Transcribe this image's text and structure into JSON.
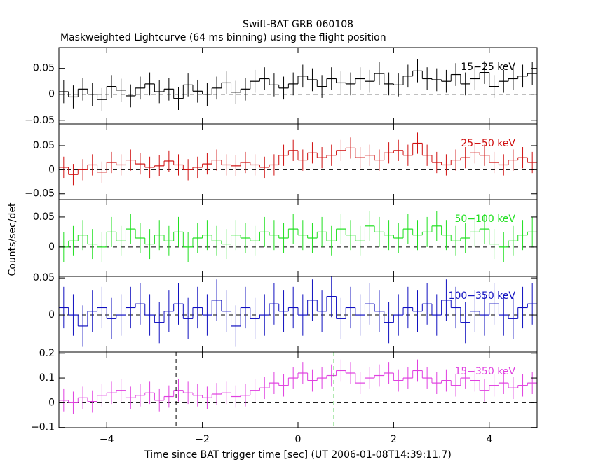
{
  "title": "Swift-BAT GRB 060108",
  "subtitle": "Maskweighted Lightcurve (64 ms binning) using the flight position",
  "ylabel": "Counts/sec/det",
  "xlabel": "Time since BAT trigger time [sec] (UT 2006-01-08T14:39:11.7)",
  "chart_data": [
    {
      "type": "line",
      "label": "15−25 keV",
      "color": "#000000",
      "x": [
        -4.9,
        -4.7,
        -4.5,
        -4.3,
        -4.1,
        -3.9,
        -3.7,
        -3.5,
        -3.3,
        -3.1,
        -2.9,
        -2.7,
        -2.5,
        -2.3,
        -2.1,
        -1.9,
        -1.7,
        -1.5,
        -1.3,
        -1.1,
        -0.9,
        -0.7,
        -0.5,
        -0.3,
        -0.1,
        0.1,
        0.3,
        0.5,
        0.7,
        0.9,
        1.1,
        1.3,
        1.5,
        1.7,
        1.9,
        2.1,
        2.3,
        2.5,
        2.7,
        2.9,
        3.1,
        3.3,
        3.5,
        3.7,
        3.9,
        4.1,
        4.3,
        4.5,
        4.7,
        4.9
      ],
      "values": [
        0.005,
        -0.005,
        0.01,
        0.0,
        -0.01,
        0.015,
        0.008,
        -0.003,
        0.012,
        0.02,
        0.005,
        0.01,
        -0.008,
        0.018,
        0.006,
        0.0,
        0.012,
        0.022,
        0.004,
        0.01,
        0.025,
        0.03,
        0.018,
        0.012,
        0.02,
        0.035,
        0.028,
        0.015,
        0.03,
        0.022,
        0.02,
        0.03,
        0.025,
        0.04,
        0.02,
        0.018,
        0.035,
        0.045,
        0.03,
        0.028,
        0.025,
        0.038,
        0.02,
        0.03,
        0.042,
        0.015,
        0.025,
        0.03,
        0.035,
        0.04
      ],
      "error": 0.022,
      "xlim": [
        -5,
        5
      ],
      "xticks": [
        -4,
        -2,
        0,
        2,
        4
      ],
      "ylim": [
        -0.057,
        0.09
      ],
      "yticks": [
        {
          "value": -0.05,
          "label": "−0.05"
        },
        0,
        0.05
      ]
    },
    {
      "type": "line",
      "label": "25−50 keV",
      "color": "#d01010",
      "x": [
        -4.9,
        -4.7,
        -4.5,
        -4.3,
        -4.1,
        -3.9,
        -3.7,
        -3.5,
        -3.3,
        -3.1,
        -2.9,
        -2.7,
        -2.5,
        -2.3,
        -2.1,
        -1.9,
        -1.7,
        -1.5,
        -1.3,
        -1.1,
        -0.9,
        -0.7,
        -0.5,
        -0.3,
        -0.1,
        0.1,
        0.3,
        0.5,
        0.7,
        0.9,
        1.1,
        1.3,
        1.5,
        1.7,
        1.9,
        2.1,
        2.3,
        2.5,
        2.7,
        2.9,
        3.1,
        3.3,
        3.5,
        3.7,
        3.9,
        4.1,
        4.3,
        4.5,
        4.7,
        4.9
      ],
      "values": [
        0.005,
        -0.01,
        0.0,
        0.01,
        -0.005,
        0.015,
        0.01,
        0.02,
        0.012,
        0.005,
        0.008,
        0.018,
        0.01,
        0.0,
        0.005,
        0.012,
        0.02,
        0.01,
        0.008,
        0.015,
        0.01,
        0.005,
        0.01,
        0.03,
        0.04,
        0.02,
        0.035,
        0.025,
        0.03,
        0.04,
        0.045,
        0.025,
        0.03,
        0.02,
        0.035,
        0.04,
        0.03,
        0.055,
        0.03,
        0.015,
        0.01,
        0.02,
        0.025,
        0.035,
        0.03,
        0.015,
        0.01,
        0.02,
        0.025,
        0.015
      ],
      "error": 0.022,
      "xlim": [
        -5,
        5
      ],
      "xticks": [
        -4,
        -2,
        0,
        2,
        4
      ],
      "ylim": [
        -0.062,
        0.095
      ],
      "yticks": [
        {
          "value": -0.05,
          "label": "−0.05"
        },
        0,
        0.05
      ]
    },
    {
      "type": "line",
      "label": "50−100 keV",
      "color": "#20e020",
      "x": [
        -4.9,
        -4.7,
        -4.5,
        -4.3,
        -4.1,
        -3.9,
        -3.7,
        -3.5,
        -3.3,
        -3.1,
        -2.9,
        -2.7,
        -2.5,
        -2.3,
        -2.1,
        -1.9,
        -1.7,
        -1.5,
        -1.3,
        -1.1,
        -0.9,
        -0.7,
        -0.5,
        -0.3,
        -0.1,
        0.1,
        0.3,
        0.5,
        0.7,
        0.9,
        1.1,
        1.3,
        1.5,
        1.7,
        1.9,
        2.1,
        2.3,
        2.5,
        2.7,
        2.9,
        3.1,
        3.3,
        3.5,
        3.7,
        3.9,
        4.1,
        4.3,
        4.5,
        4.7,
        4.9
      ],
      "values": [
        0.0,
        0.01,
        0.02,
        0.005,
        0.0,
        0.025,
        0.01,
        0.03,
        0.015,
        0.005,
        0.02,
        0.01,
        0.025,
        0.0,
        0.015,
        0.02,
        0.01,
        0.005,
        0.02,
        0.015,
        0.01,
        0.025,
        0.02,
        0.015,
        0.03,
        0.02,
        0.015,
        0.025,
        0.01,
        0.03,
        0.02,
        0.01,
        0.035,
        0.025,
        0.02,
        0.015,
        0.03,
        0.02,
        0.025,
        0.035,
        0.02,
        0.01,
        0.015,
        0.025,
        0.03,
        0.005,
        0.0,
        0.01,
        0.02,
        0.025
      ],
      "error": 0.025,
      "xlim": [
        -5,
        5
      ],
      "xticks": [
        -4,
        -2,
        0,
        2,
        4
      ],
      "ylim": [
        -0.049,
        0.079
      ],
      "yticks": [
        0,
        0.05
      ]
    },
    {
      "type": "line",
      "label": "100−350 keV",
      "color": "#1010c0",
      "x": [
        -4.9,
        -4.7,
        -4.5,
        -4.3,
        -4.1,
        -3.9,
        -3.7,
        -3.5,
        -3.3,
        -3.1,
        -2.9,
        -2.7,
        -2.5,
        -2.3,
        -2.1,
        -1.9,
        -1.7,
        -1.5,
        -1.3,
        -1.1,
        -0.9,
        -0.7,
        -0.5,
        -0.3,
        -0.1,
        0.1,
        0.3,
        0.5,
        0.7,
        0.9,
        1.1,
        1.3,
        1.5,
        1.7,
        1.9,
        2.1,
        2.3,
        2.5,
        2.7,
        2.9,
        3.1,
        3.3,
        3.5,
        3.7,
        3.9,
        4.1,
        4.3,
        4.5,
        4.7,
        4.9
      ],
      "values": [
        0.01,
        0.0,
        -0.015,
        0.005,
        0.01,
        -0.005,
        0.0,
        0.01,
        0.015,
        0.0,
        -0.01,
        0.005,
        0.015,
        -0.005,
        0.01,
        0.0,
        0.02,
        0.005,
        -0.015,
        0.01,
        -0.005,
        0.0,
        0.015,
        0.005,
        0.01,
        0.0,
        0.02,
        0.005,
        0.025,
        -0.005,
        0.01,
        0.0,
        0.015,
        0.005,
        -0.01,
        0.0,
        0.01,
        0.005,
        0.015,
        0.0,
        0.02,
        0.01,
        -0.01,
        0.005,
        0.0,
        0.015,
        0.0,
        -0.005,
        0.01,
        0.015
      ],
      "error": 0.028,
      "xlim": [
        -5,
        5
      ],
      "xticks": [
        -4,
        -2,
        0,
        2,
        4
      ],
      "ylim": [
        -0.05,
        0.052
      ],
      "yticks": [
        0,
        0.05
      ]
    },
    {
      "type": "line",
      "label": "15−350 keV",
      "color": "#e040e0",
      "x": [
        -4.9,
        -4.7,
        -4.5,
        -4.3,
        -4.1,
        -3.9,
        -3.7,
        -3.5,
        -3.3,
        -3.1,
        -2.9,
        -2.7,
        -2.5,
        -2.3,
        -2.1,
        -1.9,
        -1.7,
        -1.5,
        -1.3,
        -1.1,
        -0.9,
        -0.7,
        -0.5,
        -0.3,
        -0.1,
        0.1,
        0.3,
        0.5,
        0.7,
        0.9,
        1.1,
        1.3,
        1.5,
        1.7,
        1.9,
        2.1,
        2.3,
        2.5,
        2.7,
        2.9,
        3.1,
        3.3,
        3.5,
        3.7,
        3.9,
        4.1,
        4.3,
        4.5,
        4.7,
        4.9
      ],
      "values": [
        0.01,
        0.0,
        0.02,
        0.005,
        0.03,
        0.04,
        0.05,
        0.02,
        0.03,
        0.04,
        0.01,
        0.025,
        0.05,
        0.04,
        0.03,
        0.02,
        0.035,
        0.04,
        0.025,
        0.03,
        0.05,
        0.06,
        0.08,
        0.07,
        0.1,
        0.12,
        0.09,
        0.1,
        0.11,
        0.13,
        0.12,
        0.08,
        0.1,
        0.11,
        0.12,
        0.09,
        0.1,
        0.13,
        0.1,
        0.08,
        0.09,
        0.07,
        0.1,
        0.09,
        0.05,
        0.07,
        0.08,
        0.06,
        0.07,
        0.08
      ],
      "error": 0.045,
      "xlim": [
        -5,
        5
      ],
      "xticks": [
        {
          "value": -4,
          "label": "−4"
        },
        {
          "value": -2,
          "label": "−2"
        },
        0,
        2,
        4
      ],
      "ylim": [
        -0.101,
        0.205
      ],
      "yticks": [
        {
          "value": -0.1,
          "label": "−0.1"
        },
        0,
        0.1,
        0.2
      ],
      "markers": [
        {
          "x": -2.55,
          "color": "#000000"
        },
        {
          "x": 0.75,
          "color": "#20c020"
        }
      ]
    }
  ]
}
